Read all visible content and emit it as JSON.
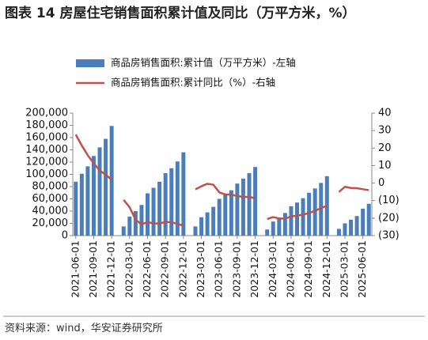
{
  "chart_data": {
    "type": "bar_line",
    "title": "图表 14 房屋住宅销售面积累计值及同比（万平方米，%）",
    "source": "资料来源：wind，华安证券研究所",
    "categories": [
      "2021-06-01",
      null,
      null,
      "2021-09-01",
      null,
      null,
      "2021-12-01",
      null,
      null,
      "2022-03-01",
      null,
      null,
      "2022-06-01",
      null,
      null,
      "2022-09-01",
      null,
      null,
      "2022-12-01",
      null,
      null,
      "2023-03-01",
      null,
      null,
      "2023-06-01",
      null,
      null,
      "2023-09-01",
      null,
      null,
      "2023-12-01",
      null,
      null,
      "2024-03-01",
      null,
      null,
      "2024-06-01",
      null,
      null,
      "2024-09-01",
      null,
      null,
      "2024-12-01",
      null,
      null,
      "2025-03-01",
      null,
      null,
      "2025-06-01",
      null
    ],
    "series": [
      {
        "name": "商品房销售面积:累计值（万平方米）-左轴",
        "color": "#4a7ebb",
        "axis": "y",
        "values": [
          88000,
          101000,
          113000,
          130000,
          144000,
          158000,
          179000,
          null,
          15000,
          31000,
          40000,
          50000,
          69000,
          78000,
          88000,
          102000,
          110000,
          121000,
          136000,
          null,
          15000,
          30000,
          38000,
          47000,
          60000,
          67000,
          74000,
          85000,
          93000,
          102000,
          112000,
          null,
          10000,
          23000,
          29000,
          37000,
          48000,
          54000,
          61000,
          70000,
          77000,
          86000,
          97000,
          null,
          11000,
          20000,
          26000,
          32000,
          44000,
          52000
        ]
      },
      {
        "name": "商品房销售面积:累计同比（%）-右轴",
        "color": "#c0504d",
        "axis": "y2",
        "values": [
          27.7,
          21.5,
          15.9,
          11.3,
          7.2,
          4.8,
          1.9,
          null,
          -9.6,
          -13.8,
          -20.9,
          -23.6,
          -22.2,
          -23.1,
          -23.0,
          -22.2,
          -22.3,
          -23.3,
          -24.3,
          null,
          -3.6,
          -1.8,
          -0.4,
          -0.9,
          -5.3,
          -6.5,
          -6.5,
          -7.5,
          -7.8,
          -8.0,
          -8.5,
          null,
          -20.5,
          -19.4,
          -20.2,
          -20.3,
          -19.0,
          -18.6,
          -18.0,
          -17.1,
          -15.8,
          -14.3,
          -12.9,
          null,
          -5.1,
          -2.1,
          -2.8,
          -2.9,
          -3.5,
          -4.0
        ]
      }
    ],
    "ylim": [
      0,
      200000
    ],
    "yticks": [
      0,
      {
        "value": 20000,
        "label": "20,000"
      },
      {
        "value": 40000,
        "label": "40,000"
      },
      {
        "value": 60000,
        "label": "60,000"
      },
      {
        "value": 80000,
        "label": "80,000"
      },
      {
        "value": 100000,
        "label": "100,000"
      },
      {
        "value": 120000,
        "label": "120,000"
      },
      {
        "value": 140000,
        "label": "140,000"
      },
      {
        "value": 160000,
        "label": "160,000"
      },
      {
        "value": 180000,
        "label": "180,000"
      },
      {
        "value": 200000,
        "label": "200,000"
      }
    ],
    "y2lim": [
      -30,
      40
    ],
    "y2ticks": [
      {
        "value": -30,
        "label": "(30)"
      },
      {
        "value": -20,
        "label": "(20)"
      },
      {
        "value": -10,
        "label": "(10)"
      },
      0,
      10,
      20,
      30,
      40
    ],
    "negative_tick_color": "#e00000"
  }
}
